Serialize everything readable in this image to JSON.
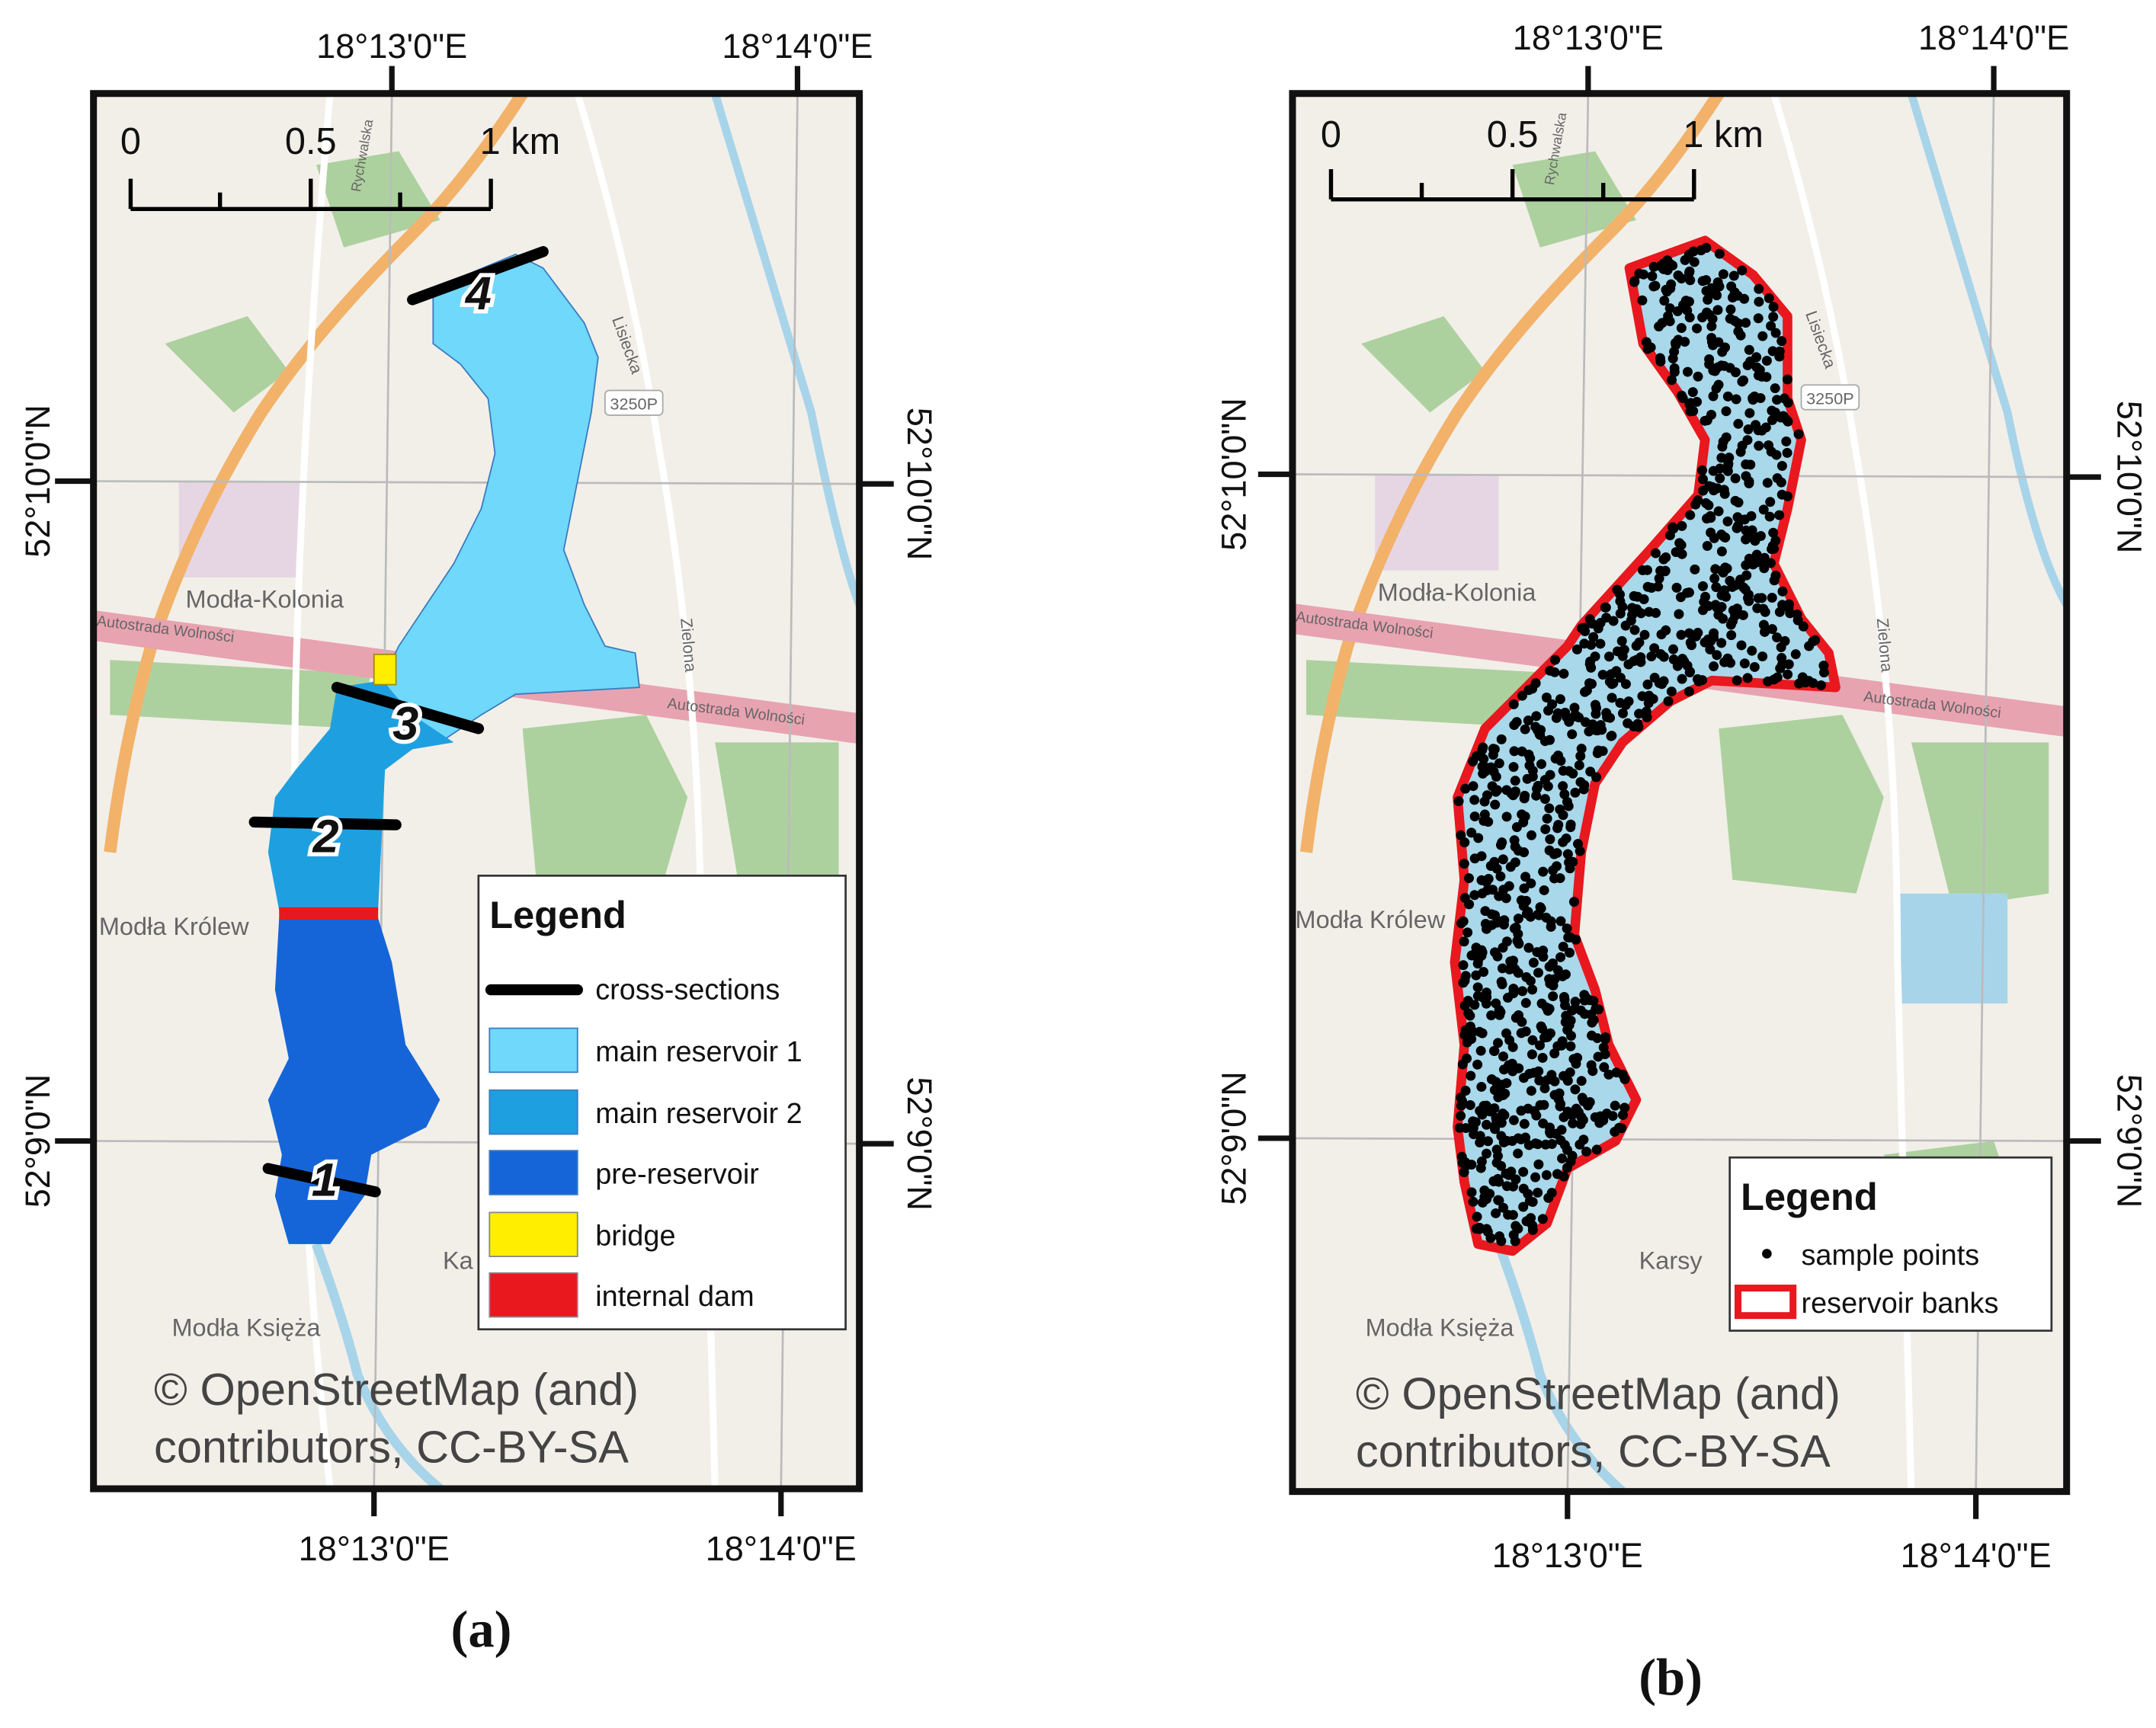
{
  "panels": [
    {
      "caption": "(a)",
      "longitude_labels": [
        "18°13'0\"E",
        "18°14'0\"E"
      ],
      "latitude_labels": [
        "52°10'0\"N",
        "52°9'0\"N"
      ],
      "scale_labels": [
        "0",
        "0.5",
        "1 km"
      ],
      "section_labels": [
        "1",
        "2",
        "3",
        "4"
      ],
      "place_labels": [
        "Modła-Kolonia",
        "Autostrada Wolności",
        "Autostrada Wolności",
        "Modła Królew",
        "Modła Księża",
        "Zielona",
        "Lisiecka",
        "3250P",
        "Rychwalska",
        "Ka"
      ],
      "legend": {
        "title": "Legend",
        "items": [
          "cross-sections",
          "main reservoir 1",
          "main reservoir 2",
          "pre-reservoir",
          "bridge",
          "internal dam"
        ]
      },
      "copyright": [
        "© OpenStreetMap (and)",
        "contributors, CC-BY-SA"
      ]
    },
    {
      "caption": "(b)",
      "longitude_labels": [
        "18°13'0\"E",
        "18°14'0\"E"
      ],
      "latitude_labels": [
        "52°10'0\"N",
        "52°9'0\"N"
      ],
      "scale_labels": [
        "0",
        "0.5",
        "1 km"
      ],
      "place_labels": [
        "Modła-Kolonia",
        "Autostrada Wolności",
        "Autostrada Wolności",
        "Modła Królew",
        "Modła Księża",
        "Zielona",
        "Lisiecka",
        "3250P",
        "Rychwalska",
        "Karsy"
      ],
      "legend": {
        "title": "Legend",
        "items": [
          "sample points",
          "reservoir banks"
        ]
      },
      "copyright": [
        "© OpenStreetMap (and)",
        "contributors, CC-BY-SA"
      ]
    }
  ]
}
